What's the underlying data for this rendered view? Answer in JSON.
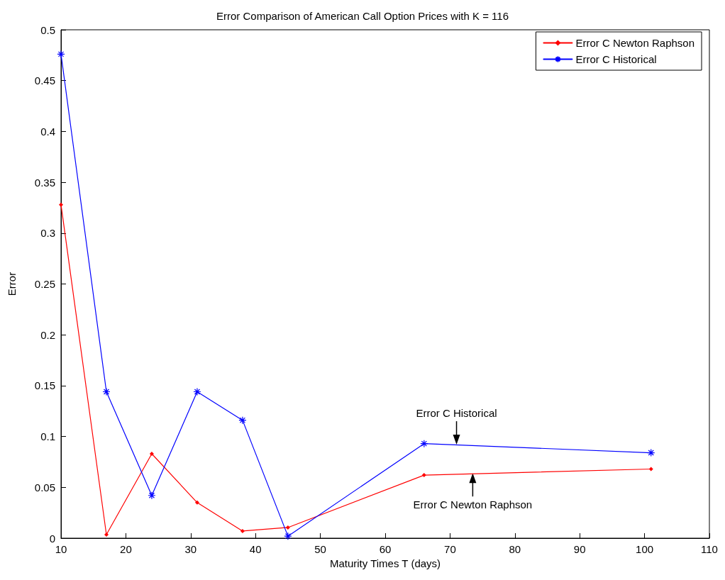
{
  "chart_data": {
    "type": "line",
    "title": "Error Comparison of American Call Option Prices with K = 116",
    "xlabel": "Maturity Times T (days)",
    "ylabel": "Error",
    "x": [
      10,
      17,
      24,
      31,
      38,
      45,
      66,
      101
    ],
    "series": [
      {
        "name": "Error C Newton Raphson",
        "color": "#ff0000",
        "marker": "diamond",
        "values": [
          0.328,
          0.0035,
          0.083,
          0.035,
          0.007,
          0.0105,
          0.062,
          0.068
        ]
      },
      {
        "name": "Error C Historical",
        "color": "#0000ff",
        "marker": "cross",
        "values": [
          0.476,
          0.144,
          0.042,
          0.144,
          0.116,
          0.002,
          0.093,
          0.084
        ]
      }
    ],
    "annotations": [
      {
        "text": "Error C Historical",
        "x": 71,
        "y": 0.092
      },
      {
        "text": "Error C Newton Raphson",
        "x": 73.5,
        "y": 0.064
      }
    ],
    "xlim": [
      10,
      110
    ],
    "xticks": [
      10,
      20,
      30,
      40,
      50,
      60,
      70,
      80,
      90,
      100,
      110
    ],
    "ylim": [
      0,
      0.5
    ],
    "yticks": [
      0,
      0.05,
      0.1,
      0.15,
      0.2,
      0.25,
      0.3,
      0.35,
      0.4,
      0.45,
      0.5
    ],
    "grid": false,
    "legend": "top right",
    "line_style": "solid"
  }
}
